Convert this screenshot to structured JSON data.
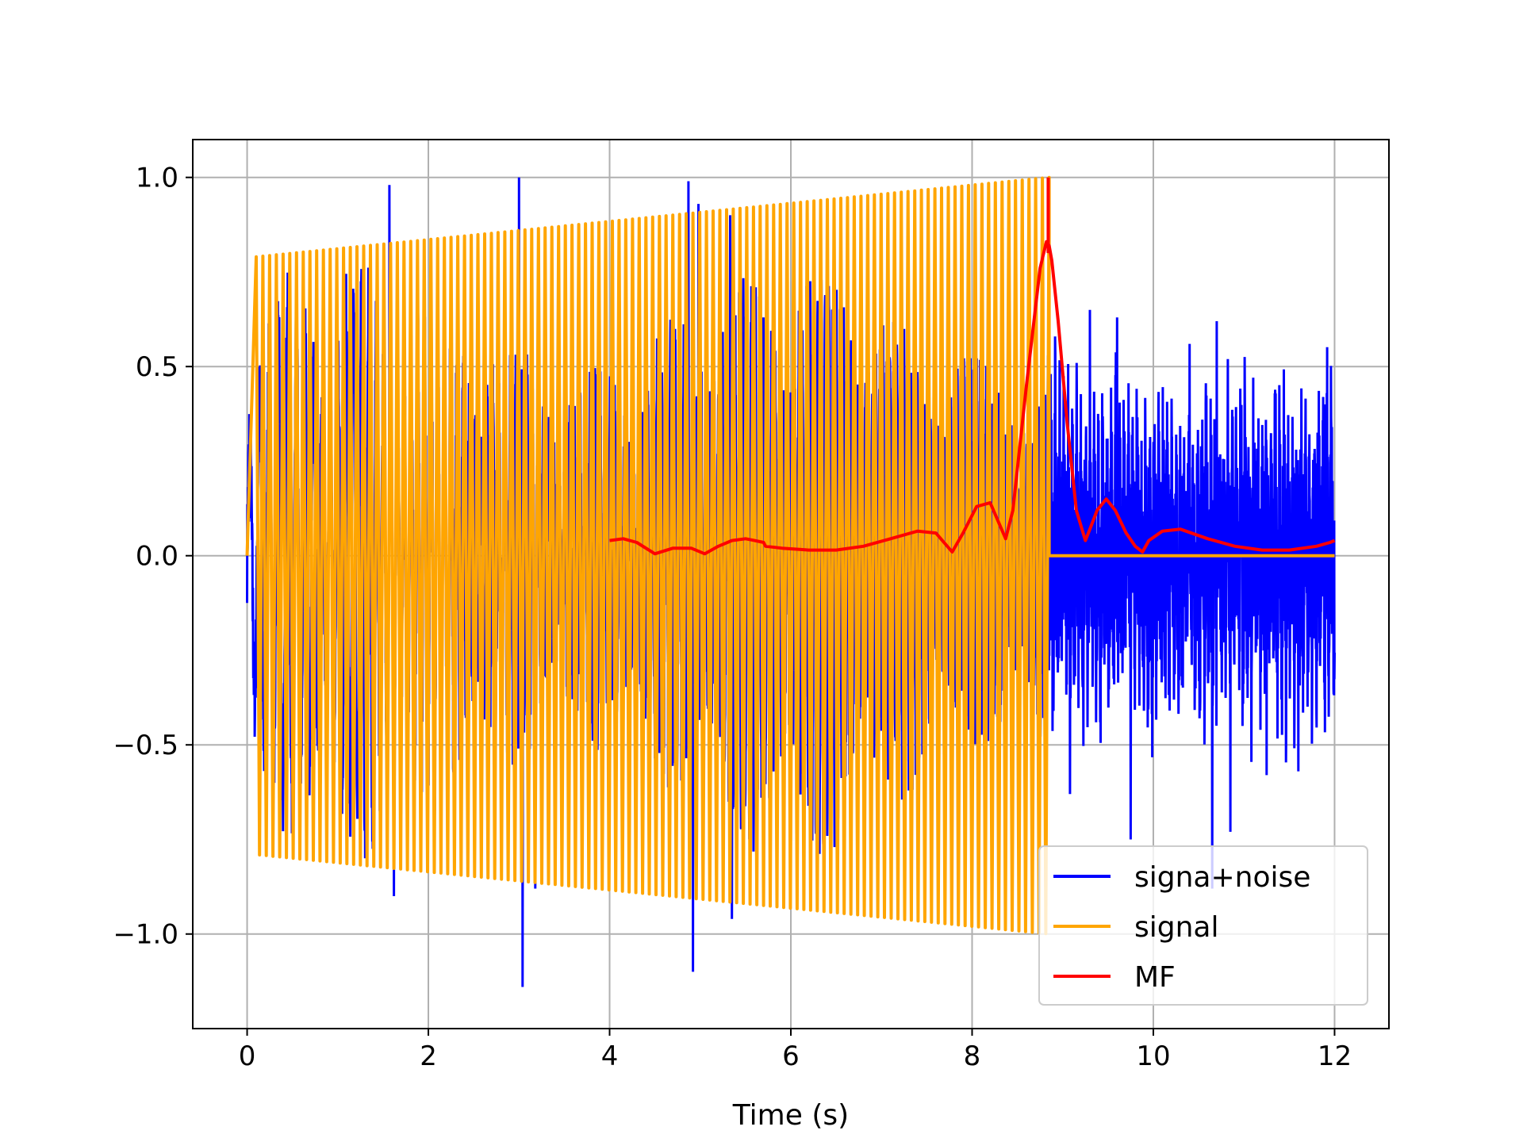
{
  "chart_data": {
    "type": "line",
    "title": "",
    "xlabel": "Time (s)",
    "ylabel": "",
    "xlim": [
      -0.6,
      12.6
    ],
    "ylim": [
      -1.25,
      1.1
    ],
    "xticks": [
      0,
      2,
      4,
      6,
      8,
      10,
      12
    ],
    "xtick_labels": [
      "0",
      "2",
      "4",
      "6",
      "8",
      "10",
      "12"
    ],
    "yticks": [
      -1.0,
      -0.5,
      0.0,
      0.5,
      1.0
    ],
    "ytick_labels": [
      "−1.0",
      "−0.5",
      "0.0",
      "0.5",
      "1.0"
    ],
    "grid": true,
    "legend_position": "lower-right",
    "series": [
      {
        "name": "signa+noise",
        "color": "#0000ff",
        "description_shape": "noisy chirp 0-8.85 s, pure noise 8.85-12 s",
        "spikes": [
          [
            0.02,
            0.18
          ],
          [
            1.57,
            0.98
          ],
          [
            1.62,
            -0.9
          ],
          [
            3.0,
            1.0
          ],
          [
            3.04,
            -1.14
          ],
          [
            3.18,
            -0.88
          ],
          [
            4.87,
            0.99
          ],
          [
            4.92,
            -1.1
          ],
          [
            4.98,
            0.93
          ],
          [
            5.33,
            0.9
          ],
          [
            5.35,
            -0.96
          ]
        ],
        "noise_region": {
          "x": [
            8.85,
            12.0
          ],
          "y_range": [
            -0.9,
            0.65
          ]
        }
      },
      {
        "name": "signal",
        "color": "#ffa500",
        "envelope": {
          "x": [
            0.1,
            8.85
          ],
          "amplitude": [
            0.79,
            1.0
          ]
        },
        "after": {
          "x": [
            8.85,
            12.0
          ],
          "y": 0.0
        }
      },
      {
        "name": "MF",
        "color": "#ff0000",
        "x": [
          4.0,
          4.15,
          4.3,
          4.5,
          4.7,
          4.9,
          5.05,
          5.2,
          5.35,
          5.5,
          5.6,
          5.7,
          5.72,
          5.9,
          6.2,
          6.5,
          6.8,
          7.1,
          7.4,
          7.6,
          7.78,
          7.9,
          8.05,
          8.2,
          8.37,
          8.45,
          8.6,
          8.75,
          8.82,
          8.85,
          8.88,
          8.95,
          9.05,
          9.15,
          9.25,
          9.3,
          9.38,
          9.48,
          9.58,
          9.7,
          9.8,
          9.88,
          9.95,
          10.1,
          10.3,
          10.6,
          10.9,
          11.2,
          11.5,
          11.8,
          11.95,
          12.0
        ],
        "y": [
          0.04,
          0.045,
          0.035,
          0.005,
          0.02,
          0.02,
          0.005,
          0.025,
          0.04,
          0.045,
          0.04,
          0.035,
          0.025,
          0.02,
          0.015,
          0.015,
          0.025,
          0.045,
          0.065,
          0.06,
          0.01,
          0.06,
          0.13,
          0.14,
          0.045,
          0.12,
          0.45,
          0.76,
          0.83,
          0.82,
          0.78,
          0.62,
          0.35,
          0.12,
          0.04,
          0.07,
          0.12,
          0.15,
          0.12,
          0.06,
          0.025,
          0.01,
          0.04,
          0.065,
          0.07,
          0.045,
          0.025,
          0.015,
          0.015,
          0.025,
          0.035,
          0.04
        ]
      }
    ]
  }
}
